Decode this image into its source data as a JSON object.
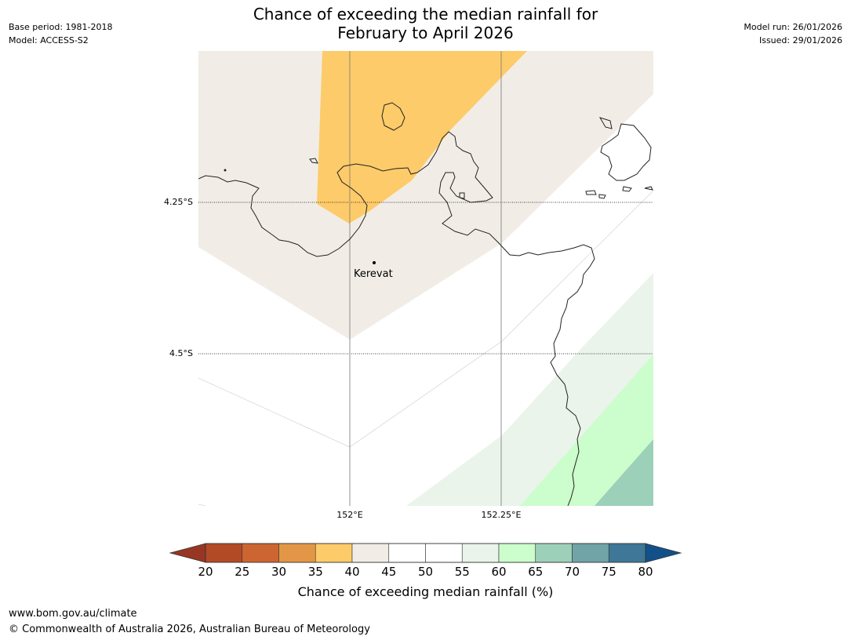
{
  "title_line1": "Chance of exceeding the median rainfall for",
  "title_line2": "February to April 2026",
  "meta_left": [
    "Base period: 1981-2018",
    "Model: ACCESS-S2"
  ],
  "meta_right": [
    "Model run: 26/01/2026",
    "Issued: 29/01/2026"
  ],
  "map": {
    "lat_labels": [
      "4.25°S",
      "4.5°S"
    ],
    "lon_labels": [
      "152°E",
      "152.25°E"
    ],
    "place": {
      "name": "Kerevat"
    }
  },
  "colorbar": {
    "label": "Chance of exceeding median rainfall (%)",
    "ticks": [
      "20",
      "25",
      "30",
      "35",
      "40",
      "45",
      "50",
      "55",
      "60",
      "65",
      "70",
      "75",
      "80"
    ],
    "colors": [
      "#b34a26",
      "#cd6530",
      "#e39746",
      "#fdcb69",
      "#f1ede6",
      "#ffffff",
      "#ffffff",
      "#eaf4ea",
      "#ccfdcc",
      "#9dd0b9",
      "#70a4a6",
      "#3e7797"
    ],
    "under_color": "#983624",
    "over_color": "#12508a"
  },
  "footer": [
    "www.bom.gov.au/climate",
    "© Commonwealth of Australia 2026, Australian Bureau of Meteorology"
  ]
}
